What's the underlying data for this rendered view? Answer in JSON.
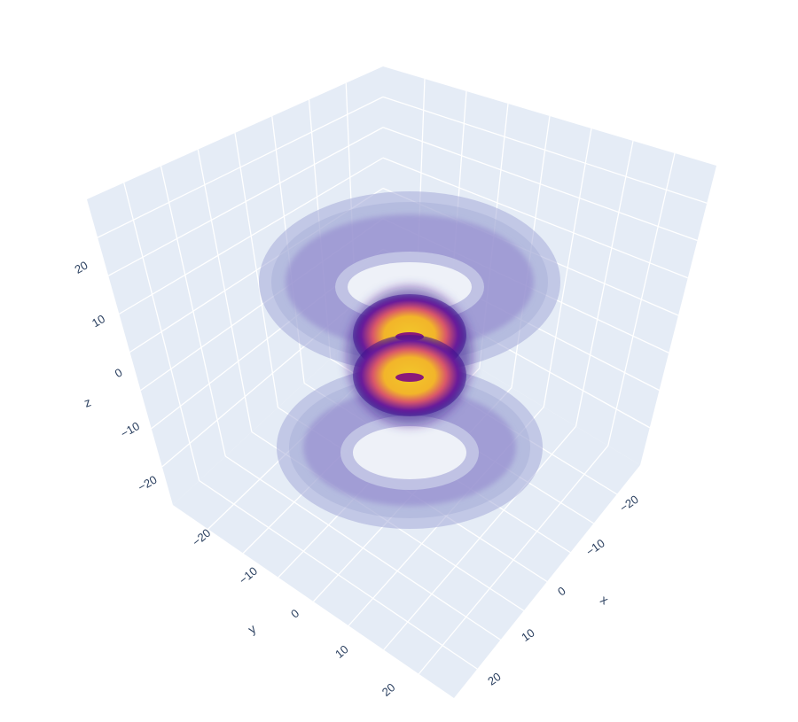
{
  "chart_data": {
    "type": "volume",
    "title": "",
    "axes": {
      "x": {
        "label": "x",
        "ticks": [
          "−20",
          "−10",
          "0",
          "10",
          "20"
        ],
        "range": [
          -25,
          25
        ]
      },
      "y": {
        "label": "y",
        "ticks": [
          "−20",
          "−10",
          "0",
          "10",
          "20"
        ],
        "range": [
          -25,
          25
        ]
      },
      "z": {
        "label": "z",
        "ticks": [
          "−20",
          "−10",
          "0",
          "10",
          "20"
        ],
        "range": [
          -25,
          25
        ]
      }
    },
    "grid": true,
    "colorscale": "Plasma",
    "colors": {
      "plane": "#e5ecf6",
      "grid": "#ffffff",
      "text": "#2a3f5f",
      "shell_outer": "#a6acd8",
      "shell_inner": "#8f84cc",
      "core_dark": "#3a0f8c",
      "core_mid": "#c23c80",
      "core_bright": "#f2b52a"
    },
    "volume": {
      "description_shape": "nested figure-eight isosurfaces",
      "lobes": 2,
      "isosurface_count": 4
    }
  }
}
